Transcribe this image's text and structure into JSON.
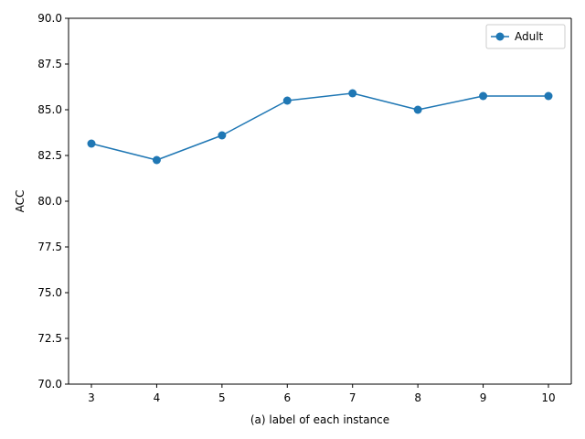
{
  "chart_data": {
    "type": "line",
    "title": "",
    "xlabel": "(a) label of each instance",
    "ylabel": "ACC",
    "x": [
      3,
      4,
      5,
      6,
      7,
      8,
      9,
      10
    ],
    "xticks": [
      "3",
      "4",
      "5",
      "6",
      "7",
      "8",
      "9",
      "10"
    ],
    "yticks": [
      "70.0",
      "72.5",
      "75.0",
      "77.5",
      "80.0",
      "82.5",
      "85.0",
      "87.5",
      "90.0"
    ],
    "ylim": [
      70,
      90
    ],
    "xlim": [
      2.65,
      10.35
    ],
    "grid": false,
    "legend_position": "top-right",
    "series": [
      {
        "name": "Adult",
        "color": "#1f77b4",
        "marker": "circle",
        "values": [
          83.15,
          82.25,
          83.6,
          85.5,
          85.9,
          85.0,
          85.75,
          85.75
        ]
      }
    ]
  }
}
